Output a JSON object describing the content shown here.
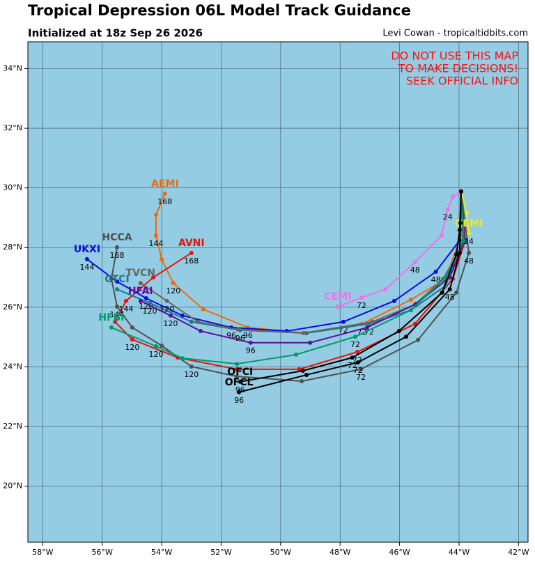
{
  "header": {
    "title": "Tropical Depression 06L Model Track Guidance",
    "subtitle": "Initialized at 18z Sep 26 2026",
    "credit": "Levi Cowan - tropicaltidbits.com"
  },
  "warning": [
    "DO NOT USE THIS MAP",
    "TO MAKE DECISIONS!",
    "SEEK OFFICIAL INFO"
  ],
  "map": {
    "xlim": [
      -58.5,
      -41.68
    ],
    "ylim": [
      18.12,
      34.9
    ],
    "xticks": [
      {
        "value": -58,
        "label": "58°W"
      },
      {
        "value": -56,
        "label": "56°W"
      },
      {
        "value": -54,
        "label": "54°W"
      },
      {
        "value": -52,
        "label": "52°W"
      },
      {
        "value": -50,
        "label": "50°W"
      },
      {
        "value": -48,
        "label": "48°W"
      },
      {
        "value": -46,
        "label": "46°W"
      },
      {
        "value": -44,
        "label": "44°W"
      },
      {
        "value": -42,
        "label": "42°W"
      }
    ],
    "yticks": [
      {
        "value": 20,
        "label": "20°N"
      },
      {
        "value": 22,
        "label": "22°N"
      },
      {
        "value": 24,
        "label": "24°N"
      },
      {
        "value": 26,
        "label": "26°N"
      },
      {
        "value": 28,
        "label": "28°N"
      },
      {
        "value": 30,
        "label": "30°N"
      },
      {
        "value": 32,
        "label": "32°N"
      },
      {
        "value": 34,
        "label": "34°N"
      }
    ],
    "tracks": [
      {
        "name": "AEMI",
        "color": "#f06a0a",
        "lon": [
          -43.93,
          -43.86,
          -44.45,
          -45.62,
          -47.26,
          -49.13,
          -51.1,
          -52.6,
          -53.61,
          -54.0,
          -54.19,
          -54.19,
          -53.89
        ],
        "lat": [
          29.88,
          28.59,
          26.95,
          26.25,
          25.44,
          25.13,
          25.32,
          25.93,
          26.81,
          27.61,
          28.4,
          29.1,
          29.81
        ],
        "hours": [
          null,
          null,
          null,
          null,
          "72",
          null,
          "96",
          null,
          "120",
          null,
          "144",
          null,
          "168"
        ]
      },
      {
        "name": "AVNI",
        "color": "#e8120c",
        "lon": [
          -43.93,
          -43.79,
          -44.21,
          -45.48,
          -47.42,
          -49.37,
          -51.47,
          -53.46,
          -54.99,
          -55.57,
          -55.2,
          -54.28,
          -53.0
        ],
        "lat": [
          29.88,
          28.24,
          26.95,
          25.44,
          24.5,
          23.92,
          23.92,
          24.31,
          24.92,
          25.51,
          26.21,
          27.0,
          27.82
        ],
        "hours": [
          null,
          null,
          null,
          null,
          "72",
          null,
          null,
          null,
          "120",
          null,
          "144",
          null,
          "168"
        ]
      },
      {
        "name": "UKXI",
        "color": "#0a0ae8",
        "lon": [
          -43.93,
          -43.98,
          -44.78,
          -46.18,
          -47.89,
          -49.79,
          -51.66,
          -53.3,
          -54.52,
          -55.5,
          -56.51
        ],
        "lat": [
          29.88,
          28.24,
          27.19,
          26.21,
          25.51,
          25.2,
          25.32,
          25.72,
          26.3,
          26.86,
          27.61
        ],
        "hours": [
          null,
          null,
          "48",
          null,
          "72",
          null,
          "96",
          null,
          "120",
          null,
          "144"
        ]
      },
      {
        "name": "HCCA",
        "color": "#505050",
        "lon": [
          -43.93,
          -43.67,
          -44.09,
          -45.38,
          -47.3,
          -49.29,
          -51.47,
          -53.0,
          -54.0,
          -54.99,
          -55.5,
          -55.69,
          -55.5
        ],
        "lat": [
          29.88,
          27.82,
          26.49,
          24.9,
          23.92,
          23.52,
          23.68,
          24.01,
          24.71,
          25.32,
          26.02,
          26.95,
          28.01
        ],
        "hours": [
          null,
          "48",
          null,
          null,
          "72",
          null,
          null,
          "120",
          null,
          null,
          "144",
          null,
          "168"
        ]
      },
      {
        "name": "CTCI",
        "color": "#1a7a8a",
        "lon": [
          -43.93,
          -43.88,
          -44.45,
          -45.62,
          -47.02,
          -49.13,
          -51.36,
          -53.0,
          -54.4,
          -55.5
        ],
        "lat": [
          29.88,
          28.12,
          26.72,
          25.9,
          25.44,
          25.13,
          25.23,
          25.51,
          26.14,
          26.6
        ],
        "hours": [
          null,
          null,
          null,
          null,
          "72",
          null,
          "96",
          null,
          "120",
          null
        ]
      },
      {
        "name": "TVCN",
        "color": "#666666",
        "lon": [
          -43.93,
          -43.86,
          -44.54,
          -45.48,
          -46.91,
          -49.23,
          -51.43,
          -52.79,
          -53.82,
          -54.71
        ],
        "lat": [
          29.88,
          28.12,
          26.95,
          26.09,
          25.51,
          25.13,
          25.25,
          25.51,
          26.21,
          26.81
        ],
        "hours": [
          null,
          null,
          null,
          null,
          null,
          null,
          null,
          null,
          "120",
          null
        ]
      },
      {
        "name": "HFAI",
        "color": "#5a0f9e",
        "lon": [
          -43.93,
          -43.81,
          -44.31,
          -45.45,
          -47.09,
          -49.01,
          -51.01,
          -52.69,
          -53.7,
          -54.71
        ],
        "lat": [
          29.88,
          28.24,
          27.0,
          26.11,
          25.32,
          24.81,
          24.81,
          25.2,
          25.72,
          26.21
        ],
        "hours": [
          null,
          null,
          null,
          null,
          null,
          null,
          "96",
          null,
          "120",
          null
        ]
      },
      {
        "name": "HFBI",
        "color": "#009a6a",
        "lon": [
          -43.93,
          -43.84,
          -44.45,
          -45.62,
          -47.49,
          -49.48,
          -51.47,
          -53.3,
          -54.19,
          -55.69
        ],
        "lat": [
          29.88,
          28.24,
          27.0,
          25.9,
          25.01,
          24.41,
          24.1,
          24.29,
          24.69,
          25.32
        ],
        "hours": [
          null,
          null,
          null,
          null,
          "72",
          null,
          null,
          null,
          "120",
          null
        ]
      },
      {
        "name": "CEMI",
        "color": "#f070e8",
        "lon": [
          -43.93,
          -44.21,
          -44.38,
          -44.59,
          -45.48,
          -46.48,
          -47.28,
          -48.08
        ],
        "lat": [
          29.88,
          29.71,
          29.29,
          28.4,
          27.51,
          26.6,
          26.32,
          26.02
        ],
        "hours": [
          null,
          null,
          "24",
          null,
          "48",
          null,
          "72",
          null
        ]
      },
      {
        "name": "GEMI",
        "color": "#e8e820",
        "lon": [
          -43.93,
          -43.74,
          -43.67
        ],
        "lat": [
          29.88,
          29.17,
          28.47
        ],
        "hours": [
          null,
          null,
          "24"
        ]
      },
      {
        "name": "OFCL",
        "color": "#000000",
        "lon": [
          -43.93,
          -43.95,
          -43.98,
          -44.31,
          -45.78,
          -47.4,
          -49.13,
          -51.4
        ],
        "lat": [
          29.88,
          28.82,
          27.82,
          26.6,
          25.01,
          24.15,
          23.73,
          23.15
        ],
        "hours": [
          null,
          null,
          null,
          "48",
          null,
          "72",
          null,
          "96"
        ]
      },
      {
        "name": "OFCI",
        "color": "#000000",
        "lon": [
          -43.93,
          -43.98,
          -44.09,
          -44.57,
          -46.02,
          -47.59,
          -49.25,
          -51.36
        ],
        "lat": [
          29.88,
          28.59,
          27.77,
          26.49,
          25.2,
          24.31,
          23.87,
          23.5
        ],
        "hours": [
          null,
          null,
          null,
          null,
          null,
          "72",
          null,
          "96"
        ]
      }
    ]
  }
}
